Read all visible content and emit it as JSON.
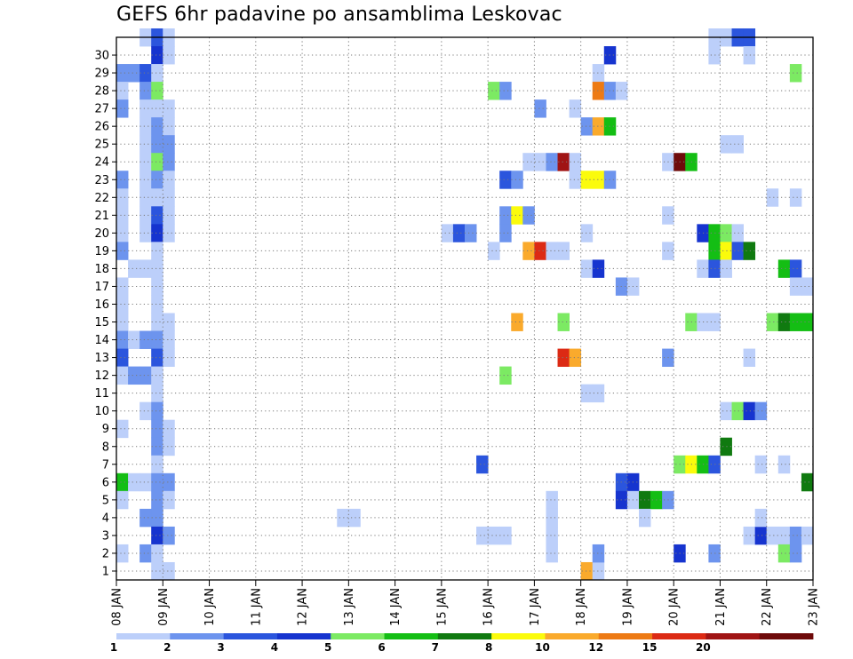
{
  "chart_data": {
    "type": "heatmap",
    "title": "GEFS 6hr padavine po ansamblima Leskovac",
    "y_tick_labels": [
      "1",
      "2",
      "3",
      "4",
      "5",
      "6",
      "7",
      "8",
      "9",
      "10",
      "11",
      "12",
      "13",
      "14",
      "15",
      "16",
      "17",
      "18",
      "19",
      "20",
      "21",
      "22",
      "23",
      "24",
      "25",
      "26",
      "27",
      "28",
      "29",
      "30"
    ],
    "x_tick_labels": [
      "08 JAN",
      "09 JAN",
      "10 JAN",
      "11 JAN",
      "12 JAN",
      "13 JAN",
      "14 JAN",
      "15 JAN",
      "16 JAN",
      "17 JAN",
      "18 JAN",
      "19 JAN",
      "20 JAN",
      "21 JAN",
      "22 JAN",
      "23 JAN"
    ],
    "x_range_days": [
      0,
      15
    ],
    "y_range_members": [
      0,
      30
    ],
    "time_step_hours": 6,
    "grid": true,
    "colorbar": {
      "placement": "bottom",
      "labels": [
        "1",
        "2",
        "3",
        "4",
        "5",
        "6",
        "7",
        "8",
        "10",
        "12",
        "15",
        "20"
      ],
      "colors": [
        "#bccffa",
        "#6d94ee",
        "#2b55dd",
        "#1634cf",
        "#7cea63",
        "#14be14",
        "#107a10",
        "#fbfb0c",
        "#faaa2c",
        "#ed7a14",
        "#dc2a14",
        "#a01414",
        "#6e0a0a"
      ]
    },
    "cells_note_units": "d = day index from 08 JAN (0..14), s = 6-hour step within day (0..3), m = ensemble member, c = colorbar class index",
    "cells": [
      {
        "d": 0,
        "s": 2,
        "m": 30,
        "c": 0
      },
      {
        "d": 0,
        "s": 3,
        "m": 30,
        "c": 2
      },
      {
        "d": 1,
        "s": 0,
        "m": 30,
        "c": 0
      },
      {
        "d": 0,
        "s": 3,
        "m": 29,
        "c": 3
      },
      {
        "d": 1,
        "s": 0,
        "m": 29,
        "c": 0
      },
      {
        "d": 0,
        "s": 0,
        "m": 28,
        "c": 1
      },
      {
        "d": 0,
        "s": 1,
        "m": 28,
        "c": 1
      },
      {
        "d": 0,
        "s": 2,
        "m": 28,
        "c": 2
      },
      {
        "d": 0,
        "s": 3,
        "m": 28,
        "c": 0
      },
      {
        "d": 0,
        "s": 0,
        "m": 27,
        "c": 0
      },
      {
        "d": 0,
        "s": 2,
        "m": 27,
        "c": 1
      },
      {
        "d": 0,
        "s": 3,
        "m": 27,
        "c": 4
      },
      {
        "d": 0,
        "s": 0,
        "m": 26,
        "c": 1
      },
      {
        "d": 0,
        "s": 2,
        "m": 26,
        "c": 0
      },
      {
        "d": 0,
        "s": 3,
        "m": 26,
        "c": 0
      },
      {
        "d": 1,
        "s": 0,
        "m": 26,
        "c": 0
      },
      {
        "d": 0,
        "s": 2,
        "m": 25,
        "c": 0
      },
      {
        "d": 0,
        "s": 3,
        "m": 25,
        "c": 1
      },
      {
        "d": 1,
        "s": 0,
        "m": 25,
        "c": 0
      },
      {
        "d": 0,
        "s": 2,
        "m": 24,
        "c": 0
      },
      {
        "d": 0,
        "s": 3,
        "m": 24,
        "c": 1
      },
      {
        "d": 1,
        "s": 0,
        "m": 24,
        "c": 1
      },
      {
        "d": 0,
        "s": 2,
        "m": 23,
        "c": 0
      },
      {
        "d": 0,
        "s": 3,
        "m": 23,
        "c": 4
      },
      {
        "d": 1,
        "s": 0,
        "m": 23,
        "c": 1
      },
      {
        "d": 0,
        "s": 0,
        "m": 22,
        "c": 1
      },
      {
        "d": 0,
        "s": 2,
        "m": 22,
        "c": 0
      },
      {
        "d": 0,
        "s": 3,
        "m": 22,
        "c": 1
      },
      {
        "d": 1,
        "s": 0,
        "m": 22,
        "c": 0
      },
      {
        "d": 0,
        "s": 0,
        "m": 21,
        "c": 0
      },
      {
        "d": 0,
        "s": 2,
        "m": 21,
        "c": 0
      },
      {
        "d": 0,
        "s": 3,
        "m": 21,
        "c": 0
      },
      {
        "d": 1,
        "s": 0,
        "m": 21,
        "c": 0
      },
      {
        "d": 0,
        "s": 0,
        "m": 20,
        "c": 0
      },
      {
        "d": 0,
        "s": 2,
        "m": 20,
        "c": 0
      },
      {
        "d": 0,
        "s": 3,
        "m": 20,
        "c": 2
      },
      {
        "d": 1,
        "s": 0,
        "m": 20,
        "c": 0
      },
      {
        "d": 0,
        "s": 0,
        "m": 19,
        "c": 0
      },
      {
        "d": 0,
        "s": 2,
        "m": 19,
        "c": 0
      },
      {
        "d": 0,
        "s": 3,
        "m": 19,
        "c": 3
      },
      {
        "d": 1,
        "s": 0,
        "m": 19,
        "c": 0
      },
      {
        "d": 0,
        "s": 0,
        "m": 18,
        "c": 1
      },
      {
        "d": 0,
        "s": 3,
        "m": 18,
        "c": 0
      },
      {
        "d": 0,
        "s": 1,
        "m": 17,
        "c": 0
      },
      {
        "d": 0,
        "s": 2,
        "m": 17,
        "c": 0
      },
      {
        "d": 0,
        "s": 3,
        "m": 17,
        "c": 0
      },
      {
        "d": 0,
        "s": 0,
        "m": 16,
        "c": 0
      },
      {
        "d": 0,
        "s": 3,
        "m": 16,
        "c": 0
      },
      {
        "d": 0,
        "s": 0,
        "m": 15,
        "c": 0
      },
      {
        "d": 0,
        "s": 3,
        "m": 15,
        "c": 0
      },
      {
        "d": 0,
        "s": 0,
        "m": 14,
        "c": 0
      },
      {
        "d": 0,
        "s": 3,
        "m": 14,
        "c": 0
      },
      {
        "d": 1,
        "s": 0,
        "m": 14,
        "c": 0
      },
      {
        "d": 0,
        "s": 0,
        "m": 13,
        "c": 1
      },
      {
        "d": 0,
        "s": 1,
        "m": 13,
        "c": 0
      },
      {
        "d": 0,
        "s": 2,
        "m": 13,
        "c": 1
      },
      {
        "d": 0,
        "s": 3,
        "m": 13,
        "c": 1
      },
      {
        "d": 1,
        "s": 0,
        "m": 13,
        "c": 0
      },
      {
        "d": 0,
        "s": 0,
        "m": 12,
        "c": 2
      },
      {
        "d": 0,
        "s": 3,
        "m": 12,
        "c": 2
      },
      {
        "d": 1,
        "s": 0,
        "m": 12,
        "c": 0
      },
      {
        "d": 0,
        "s": 0,
        "m": 11,
        "c": 0
      },
      {
        "d": 0,
        "s": 1,
        "m": 11,
        "c": 1
      },
      {
        "d": 0,
        "s": 2,
        "m": 11,
        "c": 1
      },
      {
        "d": 0,
        "s": 3,
        "m": 11,
        "c": 0
      },
      {
        "d": 0,
        "s": 3,
        "m": 10,
        "c": 0
      },
      {
        "d": 0,
        "s": 2,
        "m": 9,
        "c": 0
      },
      {
        "d": 0,
        "s": 3,
        "m": 9,
        "c": 1
      },
      {
        "d": 0,
        "s": 0,
        "m": 8,
        "c": 0
      },
      {
        "d": 0,
        "s": 3,
        "m": 8,
        "c": 1
      },
      {
        "d": 1,
        "s": 0,
        "m": 8,
        "c": 0
      },
      {
        "d": 0,
        "s": 3,
        "m": 7,
        "c": 1
      },
      {
        "d": 1,
        "s": 0,
        "m": 7,
        "c": 0
      },
      {
        "d": 0,
        "s": 3,
        "m": 6,
        "c": 0
      },
      {
        "d": 0,
        "s": 0,
        "m": 5,
        "c": 5
      },
      {
        "d": 0,
        "s": 1,
        "m": 5,
        "c": 0
      },
      {
        "d": 0,
        "s": 2,
        "m": 5,
        "c": 0
      },
      {
        "d": 0,
        "s": 3,
        "m": 5,
        "c": 1
      },
      {
        "d": 1,
        "s": 0,
        "m": 5,
        "c": 1
      },
      {
        "d": 0,
        "s": 0,
        "m": 4,
        "c": 0
      },
      {
        "d": 0,
        "s": 3,
        "m": 4,
        "c": 1
      },
      {
        "d": 1,
        "s": 0,
        "m": 4,
        "c": 0
      },
      {
        "d": 0,
        "s": 2,
        "m": 3,
        "c": 1
      },
      {
        "d": 0,
        "s": 3,
        "m": 3,
        "c": 1
      },
      {
        "d": 0,
        "s": 3,
        "m": 2,
        "c": 3
      },
      {
        "d": 1,
        "s": 0,
        "m": 2,
        "c": 1
      },
      {
        "d": 0,
        "s": 0,
        "m": 1,
        "c": 0
      },
      {
        "d": 0,
        "s": 2,
        "m": 1,
        "c": 1
      },
      {
        "d": 0,
        "s": 3,
        "m": 1,
        "c": 0
      },
      {
        "d": 0,
        "s": 3,
        "m": 0,
        "c": 0
      },
      {
        "d": 1,
        "s": 0,
        "m": 0,
        "c": 0
      },
      {
        "d": 4,
        "s": 3,
        "m": 3,
        "c": 0
      },
      {
        "d": 5,
        "s": 0,
        "m": 3,
        "c": 0
      },
      {
        "d": 7,
        "s": 0,
        "m": 19,
        "c": 0
      },
      {
        "d": 7,
        "s": 1,
        "m": 19,
        "c": 2
      },
      {
        "d": 7,
        "s": 2,
        "m": 19,
        "c": 1
      },
      {
        "d": 7,
        "s": 3,
        "m": 6,
        "c": 2
      },
      {
        "d": 7,
        "s": 3,
        "m": 2,
        "c": 0
      },
      {
        "d": 8,
        "s": 0,
        "m": 2,
        "c": 0
      },
      {
        "d": 8,
        "s": 1,
        "m": 2,
        "c": 0
      },
      {
        "d": 8,
        "s": 0,
        "m": 27,
        "c": 4
      },
      {
        "d": 8,
        "s": 1,
        "m": 27,
        "c": 1
      },
      {
        "d": 8,
        "s": 1,
        "m": 22,
        "c": 2
      },
      {
        "d": 8,
        "s": 2,
        "m": 22,
        "c": 1
      },
      {
        "d": 8,
        "s": 1,
        "m": 20,
        "c": 1
      },
      {
        "d": 8,
        "s": 2,
        "m": 20,
        "c": 7
      },
      {
        "d": 8,
        "s": 3,
        "m": 20,
        "c": 1
      },
      {
        "d": 8,
        "s": 1,
        "m": 19,
        "c": 1
      },
      {
        "d": 8,
        "s": 0,
        "m": 18,
        "c": 0
      },
      {
        "d": 8,
        "s": 2,
        "m": 14,
        "c": 8
      },
      {
        "d": 8,
        "s": 1,
        "m": 11,
        "c": 4
      },
      {
        "d": 9,
        "s": 0,
        "m": 26,
        "c": 1
      },
      {
        "d": 8,
        "s": 3,
        "m": 23,
        "c": 0
      },
      {
        "d": 9,
        "s": 0,
        "m": 23,
        "c": 0
      },
      {
        "d": 9,
        "s": 1,
        "m": 23,
        "c": 1
      },
      {
        "d": 9,
        "s": 2,
        "m": 23,
        "c": 11
      },
      {
        "d": 9,
        "s": 3,
        "m": 23,
        "c": 0
      },
      {
        "d": 8,
        "s": 3,
        "m": 18,
        "c": 8
      },
      {
        "d": 9,
        "s": 0,
        "m": 18,
        "c": 10
      },
      {
        "d": 9,
        "s": 1,
        "m": 18,
        "c": 0
      },
      {
        "d": 9,
        "s": 2,
        "m": 18,
        "c": 0
      },
      {
        "d": 9,
        "s": 1,
        "m": 4,
        "c": 0
      },
      {
        "d": 9,
        "s": 2,
        "m": 14,
        "c": 4
      },
      {
        "d": 9,
        "s": 2,
        "m": 12,
        "c": 10
      },
      {
        "d": 9,
        "s": 3,
        "m": 12,
        "c": 8
      },
      {
        "d": 9,
        "s": 1,
        "m": 3,
        "c": 0
      },
      {
        "d": 9,
        "s": 1,
        "m": 2,
        "c": 0
      },
      {
        "d": 9,
        "s": 1,
        "m": 1,
        "c": 0
      },
      {
        "d": 9,
        "s": 3,
        "m": 26,
        "c": 0
      },
      {
        "d": 9,
        "s": 3,
        "m": 22,
        "c": 0
      },
      {
        "d": 10,
        "s": 0,
        "m": 22,
        "c": 7
      },
      {
        "d": 10,
        "s": 1,
        "m": 22,
        "c": 7
      },
      {
        "d": 10,
        "s": 2,
        "m": 22,
        "c": 1
      },
      {
        "d": 10,
        "s": 0,
        "m": 25,
        "c": 1
      },
      {
        "d": 10,
        "s": 1,
        "m": 25,
        "c": 8
      },
      {
        "d": 10,
        "s": 2,
        "m": 25,
        "c": 5
      },
      {
        "d": 10,
        "s": 1,
        "m": 28,
        "c": 0
      },
      {
        "d": 10,
        "s": 1,
        "m": 27,
        "c": 9
      },
      {
        "d": 10,
        "s": 2,
        "m": 27,
        "c": 1
      },
      {
        "d": 10,
        "s": 3,
        "m": 27,
        "c": 0
      },
      {
        "d": 10,
        "s": 0,
        "m": 19,
        "c": 0
      },
      {
        "d": 10,
        "s": 0,
        "m": 17,
        "c": 0
      },
      {
        "d": 10,
        "s": 1,
        "m": 17,
        "c": 3
      },
      {
        "d": 10,
        "s": 0,
        "m": 10,
        "c": 0
      },
      {
        "d": 10,
        "s": 1,
        "m": 10,
        "c": 0
      },
      {
        "d": 10,
        "s": 0,
        "m": 0,
        "c": 8
      },
      {
        "d": 10,
        "s": 1,
        "m": 0,
        "c": 0
      },
      {
        "d": 10,
        "s": 1,
        "m": 1,
        "c": 1
      },
      {
        "d": 10,
        "s": 2,
        "m": 29,
        "c": 3
      },
      {
        "d": 10,
        "s": 3,
        "m": 16,
        "c": 1
      },
      {
        "d": 11,
        "s": 0,
        "m": 16,
        "c": 0
      },
      {
        "d": 10,
        "s": 3,
        "m": 5,
        "c": 2
      },
      {
        "d": 11,
        "s": 0,
        "m": 5,
        "c": 3
      },
      {
        "d": 10,
        "s": 3,
        "m": 4,
        "c": 3
      },
      {
        "d": 11,
        "s": 0,
        "m": 4,
        "c": 0
      },
      {
        "d": 11,
        "s": 1,
        "m": 4,
        "c": 6
      },
      {
        "d": 11,
        "s": 2,
        "m": 4,
        "c": 5
      },
      {
        "d": 11,
        "s": 3,
        "m": 4,
        "c": 1
      },
      {
        "d": 11,
        "s": 1,
        "m": 3,
        "c": 0
      },
      {
        "d": 11,
        "s": 3,
        "m": 23,
        "c": 0
      },
      {
        "d": 12,
        "s": 0,
        "m": 23,
        "c": 12
      },
      {
        "d": 12,
        "s": 1,
        "m": 23,
        "c": 5
      },
      {
        "d": 11,
        "s": 3,
        "m": 20,
        "c": 0
      },
      {
        "d": 11,
        "s": 3,
        "m": 18,
        "c": 0
      },
      {
        "d": 11,
        "s": 3,
        "m": 12,
        "c": 1
      },
      {
        "d": 12,
        "s": 0,
        "m": 1,
        "c": 3
      },
      {
        "d": 12,
        "s": 0,
        "m": 6,
        "c": 4
      },
      {
        "d": 12,
        "s": 1,
        "m": 6,
        "c": 7
      },
      {
        "d": 12,
        "s": 2,
        "m": 6,
        "c": 5
      },
      {
        "d": 12,
        "s": 3,
        "m": 6,
        "c": 2
      },
      {
        "d": 12,
        "s": 1,
        "m": 14,
        "c": 4
      },
      {
        "d": 12,
        "s": 2,
        "m": 14,
        "c": 0
      },
      {
        "d": 12,
        "s": 3,
        "m": 14,
        "c": 0
      },
      {
        "d": 12,
        "s": 2,
        "m": 19,
        "c": 3
      },
      {
        "d": 12,
        "s": 3,
        "m": 19,
        "c": 5
      },
      {
        "d": 13,
        "s": 0,
        "m": 19,
        "c": 4
      },
      {
        "d": 13,
        "s": 1,
        "m": 19,
        "c": 0
      },
      {
        "d": 12,
        "s": 3,
        "m": 18,
        "c": 5
      },
      {
        "d": 13,
        "s": 0,
        "m": 18,
        "c": 7
      },
      {
        "d": 12,
        "s": 2,
        "m": 17,
        "c": 0
      },
      {
        "d": 12,
        "s": 3,
        "m": 17,
        "c": 2
      },
      {
        "d": 13,
        "s": 0,
        "m": 17,
        "c": 0
      },
      {
        "d": 12,
        "s": 3,
        "m": 1,
        "c": 1
      },
      {
        "d": 13,
        "s": 0,
        "m": 7,
        "c": 6
      },
      {
        "d": 12,
        "s": 3,
        "m": 30,
        "c": 0
      },
      {
        "d": 13,
        "s": 0,
        "m": 30,
        "c": 0
      },
      {
        "d": 13,
        "s": 1,
        "m": 30,
        "c": 2
      },
      {
        "d": 13,
        "s": 2,
        "m": 30,
        "c": 2
      },
      {
        "d": 12,
        "s": 3,
        "m": 29,
        "c": 0
      },
      {
        "d": 13,
        "s": 2,
        "m": 29,
        "c": 0
      },
      {
        "d": 13,
        "s": 0,
        "m": 24,
        "c": 0
      },
      {
        "d": 13,
        "s": 1,
        "m": 24,
        "c": 0
      },
      {
        "d": 13,
        "s": 1,
        "m": 18,
        "c": 2
      },
      {
        "d": 13,
        "s": 2,
        "m": 18,
        "c": 6
      },
      {
        "d": 13,
        "s": 0,
        "m": 9,
        "c": 0
      },
      {
        "d": 13,
        "s": 1,
        "m": 9,
        "c": 4
      },
      {
        "d": 13,
        "s": 2,
        "m": 9,
        "c": 3
      },
      {
        "d": 13,
        "s": 3,
        "m": 9,
        "c": 1
      },
      {
        "d": 13,
        "s": 2,
        "m": 12,
        "c": 0
      },
      {
        "d": 13,
        "s": 2,
        "m": 2,
        "c": 0
      },
      {
        "d": 13,
        "s": 3,
        "m": 2,
        "c": 3
      },
      {
        "d": 14,
        "s": 0,
        "m": 2,
        "c": 0
      },
      {
        "d": 14,
        "s": 1,
        "m": 2,
        "c": 0
      },
      {
        "d": 14,
        "s": 2,
        "m": 2,
        "c": 1
      },
      {
        "d": 14,
        "s": 3,
        "m": 2,
        "c": 0
      },
      {
        "d": 13,
        "s": 3,
        "m": 3,
        "c": 0
      },
      {
        "d": 13,
        "s": 3,
        "m": 6,
        "c": 0
      },
      {
        "d": 14,
        "s": 1,
        "m": 6,
        "c": 0
      },
      {
        "d": 14,
        "s": 0,
        "m": 21,
        "c": 0
      },
      {
        "d": 14,
        "s": 2,
        "m": 21,
        "c": 0
      },
      {
        "d": 14,
        "s": 0,
        "m": 14,
        "c": 4
      },
      {
        "d": 14,
        "s": 1,
        "m": 14,
        "c": 6
      },
      {
        "d": 14,
        "s": 2,
        "m": 14,
        "c": 5
      },
      {
        "d": 14,
        "s": 3,
        "m": 14,
        "c": 5
      },
      {
        "d": 14,
        "s": 1,
        "m": 17,
        "c": 5
      },
      {
        "d": 14,
        "s": 2,
        "m": 17,
        "c": 2
      },
      {
        "d": 14,
        "s": 2,
        "m": 16,
        "c": 0
      },
      {
        "d": 14,
        "s": 3,
        "m": 16,
        "c": 0
      },
      {
        "d": 14,
        "s": 2,
        "m": 28,
        "c": 4
      },
      {
        "d": 14,
        "s": 3,
        "m": 5,
        "c": 6
      },
      {
        "d": 14,
        "s": 1,
        "m": 1,
        "c": 4
      },
      {
        "d": 14,
        "s": 2,
        "m": 1,
        "c": 1
      }
    ]
  }
}
